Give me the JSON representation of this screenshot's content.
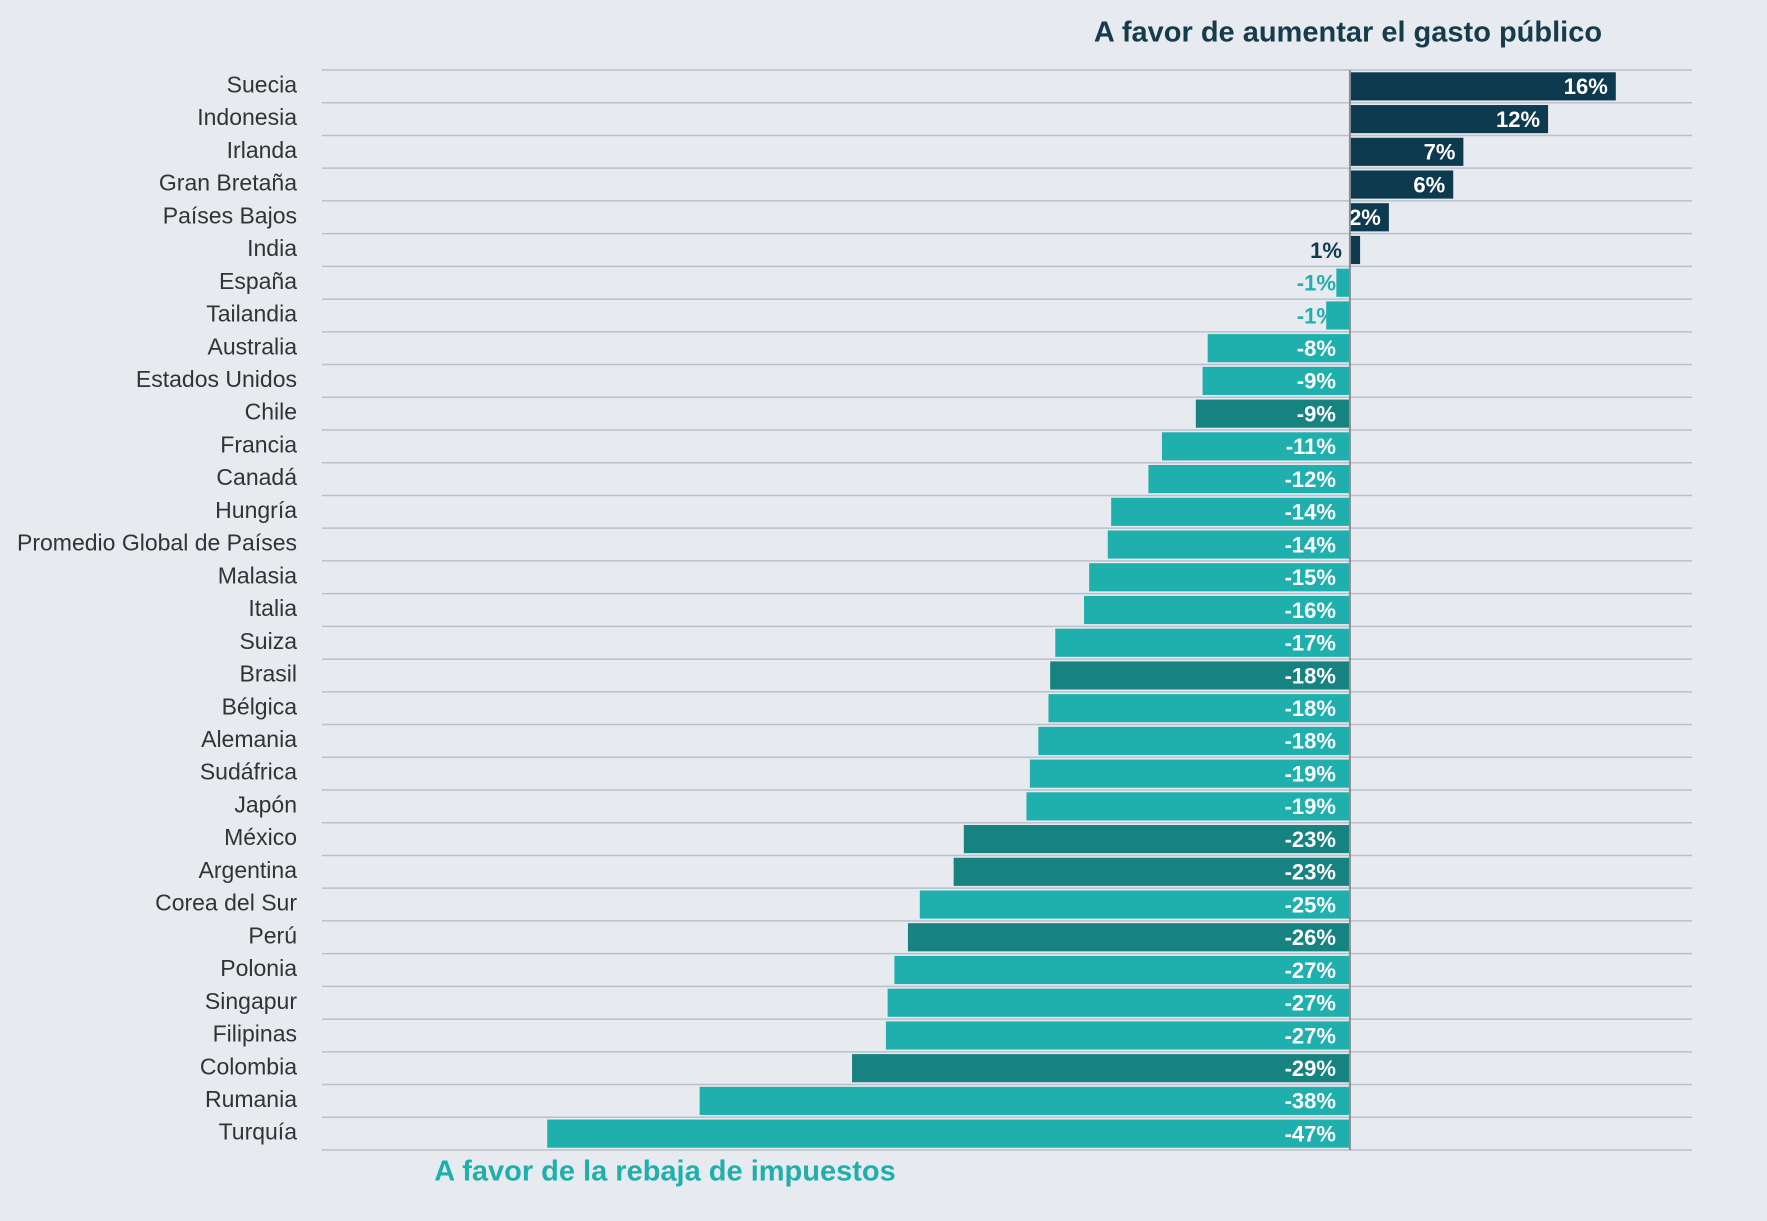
{
  "chart_data": {
    "type": "bar",
    "orientation": "horizontal",
    "title": "A favor de aumentar el gasto público",
    "subtitle": "A favor de la rebaja de impuestos",
    "categories": [
      "Suecia",
      "Indonesia",
      "Irlanda",
      "Gran Bretaña",
      "Países Bajos",
      "India",
      "España",
      "Tailandia",
      "Australia",
      "Estados Unidos",
      "Chile",
      "Francia",
      "Canadá",
      "Hungría",
      "Promedio Global de Países",
      "Malasia",
      "Italia",
      "Suiza",
      "Brasil",
      "Bélgica",
      "Alemania",
      "Sudáfrica",
      "Japón",
      "México",
      "Argentina",
      "Corea del Sur",
      "Perú",
      "Polonia",
      "Singapur",
      "Filipinas",
      "Colombia",
      "Rumania",
      "Turquía"
    ],
    "values": [
      15.7,
      11.7,
      6.7,
      6.1,
      2.3,
      0.6,
      -0.8,
      -1.4,
      -8.4,
      -8.7,
      -9.1,
      -11.1,
      -11.9,
      -14.1,
      -14.3,
      -15.4,
      -15.7,
      -17.4,
      -17.7,
      -17.8,
      -18.4,
      -18.9,
      -19.1,
      -22.8,
      -23.4,
      -25.4,
      -26.1,
      -26.9,
      -27.3,
      -27.4,
      -29.4,
      -38.4,
      -47.4
    ],
    "value_labels": [
      "16%",
      "12%",
      "7%",
      "6%",
      "2%",
      "1%",
      "-1%",
      "-1%",
      "-8%",
      "-9%",
      "-9%",
      "-11%",
      "-12%",
      "-14%",
      "-14%",
      "-15%",
      "-16%",
      "-17%",
      "-18%",
      "-18%",
      "-18%",
      "-19%",
      "-19%",
      "-23%",
      "-23%",
      "-25%",
      "-26%",
      "-27%",
      "-27%",
      "-27%",
      "-29%",
      "-38%",
      "-47%"
    ],
    "colors": [
      "#0e3a4f",
      "#0e3a4f",
      "#0e3a4f",
      "#0e3a4f",
      "#0e3a4f",
      "#0e3a4f",
      "#1fb0ad",
      "#1fb0ad",
      "#1fb0ad",
      "#1fb0ad",
      "#178380",
      "#1fb0ad",
      "#1fb0ad",
      "#1fb0ad",
      "#1fb0ad",
      "#1fb0ad",
      "#1fb0ad",
      "#1fb0ad",
      "#178380",
      "#1fb0ad",
      "#1fb0ad",
      "#1fb0ad",
      "#1fb0ad",
      "#178380",
      "#178380",
      "#1fb0ad",
      "#178380",
      "#1fb0ad",
      "#1fb0ad",
      "#1fb0ad",
      "#178380",
      "#1fb0ad",
      "#1fb0ad"
    ],
    "xlim": [
      -60.7,
      20.2
    ],
    "grid": true
  }
}
